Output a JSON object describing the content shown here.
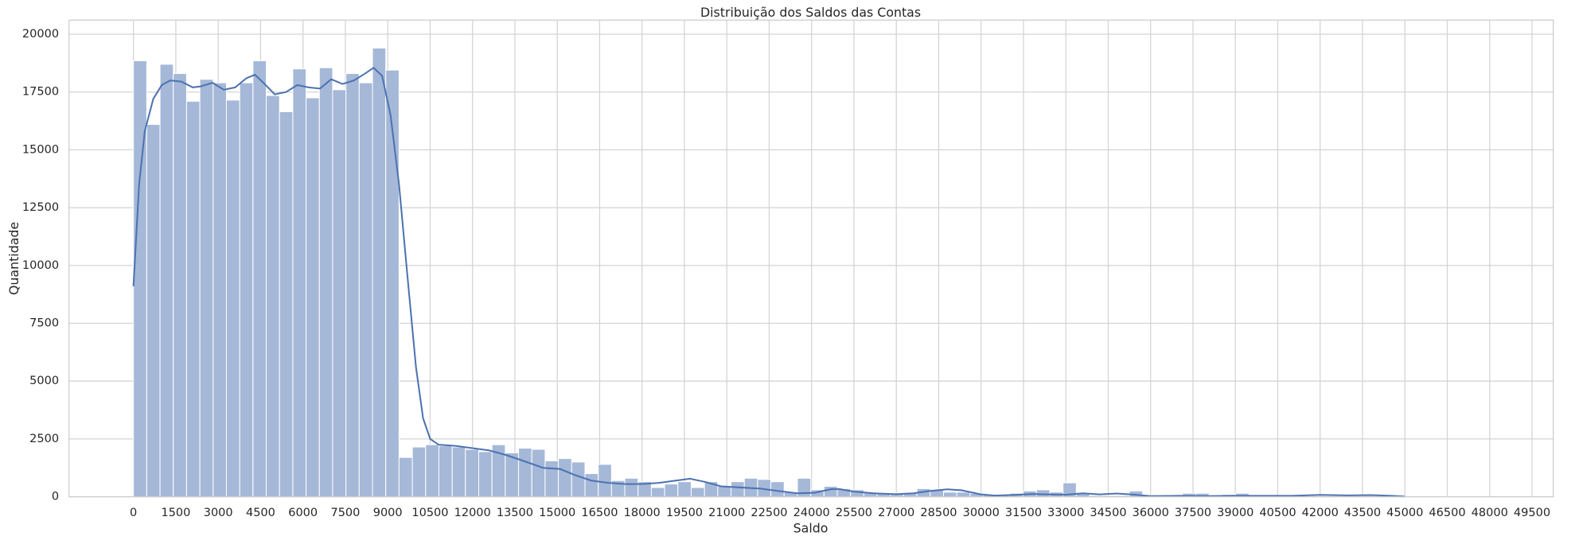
{
  "chart_data": {
    "type": "histogram",
    "title": "Distribuição dos Saldos das Contas",
    "x_label": "Saldo",
    "y_label": "Quantidade",
    "bins": [
      0,
      470,
      940,
      1410,
      1880,
      2350,
      2820,
      3290,
      3760,
      4230,
      4700,
      5170,
      5640,
      6110,
      6580,
      7050,
      7520,
      7990,
      8460,
      8930,
      9400,
      9870,
      10340,
      10810,
      11280,
      11750,
      12220,
      12690,
      13160,
      13630,
      14100,
      14570,
      15040,
      15510,
      15980,
      16450,
      16920,
      17390,
      17860,
      18330,
      18800,
      19270,
      19740,
      20210,
      20680,
      21150,
      21620,
      22090,
      22560,
      23030,
      23500,
      23970,
      24440,
      24910,
      25380,
      25850,
      26320,
      26790,
      27260,
      27730,
      28200,
      28670,
      29140,
      29610,
      30080,
      30550,
      31020,
      31490,
      31960,
      32430,
      32900,
      33370,
      33840,
      34310,
      34780,
      35250,
      35720,
      36190,
      36660,
      37130,
      37600,
      38070,
      38540,
      39010,
      39480,
      39950,
      40420,
      40890,
      41360,
      41830,
      42300,
      42770,
      43240,
      43710,
      44180,
      44650,
      45120,
      45590,
      46060,
      46530,
      47000
    ],
    "counts": [
      18850,
      16100,
      18700,
      18300,
      17100,
      18050,
      17900,
      17150,
      17900,
      18850,
      17350,
      16650,
      18500,
      17250,
      18550,
      17600,
      18300,
      17900,
      19400,
      18450,
      1700,
      2150,
      2250,
      2200,
      2150,
      2050,
      1950,
      2250,
      1900,
      2100,
      2050,
      1550,
      1650,
      1500,
      1000,
      1400,
      700,
      800,
      650,
      400,
      550,
      650,
      400,
      650,
      450,
      650,
      800,
      750,
      650,
      200,
      800,
      300,
      450,
      350,
      300,
      200,
      150,
      100,
      150,
      350,
      300,
      200,
      200,
      150,
      100,
      100,
      150,
      250,
      300,
      200,
      600,
      150,
      50,
      50,
      50,
      250,
      80,
      50,
      40,
      150,
      150,
      50,
      100,
      150,
      50,
      30,
      20,
      20,
      30,
      20,
      30,
      30,
      40,
      30,
      60,
      40,
      30,
      20,
      10,
      5
    ],
    "color": "#a5b8d8",
    "kde": {
      "color": "#4c72b0",
      "x": [
        0,
        200,
        400,
        700,
        1000,
        1300,
        1700,
        2100,
        2400,
        2800,
        3200,
        3600,
        4000,
        4300,
        4600,
        5000,
        5400,
        5800,
        6200,
        6600,
        7000,
        7400,
        7800,
        8200,
        8500,
        8800,
        9100,
        9400,
        9700,
        10000,
        10250,
        10500,
        10800,
        11400,
        12000,
        12600,
        13200,
        13800,
        14500,
        15100,
        15600,
        16200,
        16800,
        17400,
        18000,
        18600,
        19200,
        19700,
        20200,
        20800,
        21500,
        22200,
        22800,
        23500,
        24100,
        24700,
        25000,
        25500,
        26200,
        27000,
        27600,
        28200,
        28800,
        29300,
        30000,
        30500,
        31200,
        31800,
        32300,
        33000,
        33600,
        34200,
        34800,
        35300,
        36000,
        37000,
        38000,
        39000,
        40000,
        41000,
        42000,
        43000,
        43800,
        44500,
        45000
      ],
      "y": [
        9100,
        13500,
        15800,
        17200,
        17800,
        18000,
        17950,
        17700,
        17750,
        17900,
        17600,
        17700,
        18100,
        18250,
        17900,
        17400,
        17500,
        17800,
        17700,
        17650,
        18050,
        17850,
        18000,
        18300,
        18550,
        18200,
        16500,
        13500,
        9500,
        5600,
        3400,
        2500,
        2250,
        2200,
        2100,
        2000,
        1800,
        1550,
        1250,
        1200,
        950,
        700,
        600,
        550,
        550,
        600,
        700,
        780,
        650,
        450,
        400,
        350,
        250,
        150,
        170,
        330,
        330,
        220,
        150,
        110,
        150,
        250,
        320,
        280,
        100,
        50,
        80,
        120,
        100,
        90,
        150,
        100,
        140,
        100,
        30,
        40,
        30,
        40,
        40,
        40,
        80,
        60,
        70,
        40,
        10
      ]
    },
    "xlim": [
      -2280,
      50250
    ],
    "ylim": [
      0,
      20610
    ],
    "xticks": [
      0,
      1500,
      3000,
      4500,
      6000,
      7500,
      9000,
      10500,
      12000,
      13500,
      15000,
      16500,
      18000,
      19500,
      21000,
      22500,
      24000,
      25500,
      27000,
      28500,
      30000,
      31500,
      33000,
      34500,
      36000,
      37500,
      39000,
      40500,
      42000,
      43500,
      45000,
      46500,
      48000,
      49500
    ],
    "yticks": [
      0,
      2500,
      5000,
      7500,
      10000,
      12500,
      15000,
      17500,
      20000
    ],
    "grid": true
  }
}
